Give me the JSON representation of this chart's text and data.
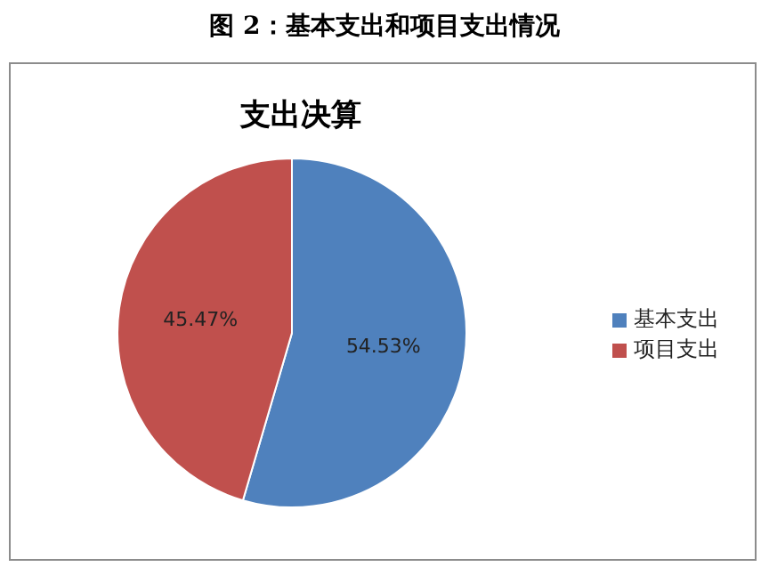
{
  "chart_data": {
    "type": "pie",
    "title": "图 2：基本支出和项目支出情况",
    "subtitle": "支出决算",
    "categories": [
      "基本支出",
      "项目支出"
    ],
    "values": [
      54.53,
      45.47
    ],
    "colors": [
      "#4f81bd",
      "#c0504d"
    ],
    "value_labels": [
      "54.53%",
      "45.47%"
    ],
    "legend": "right"
  }
}
